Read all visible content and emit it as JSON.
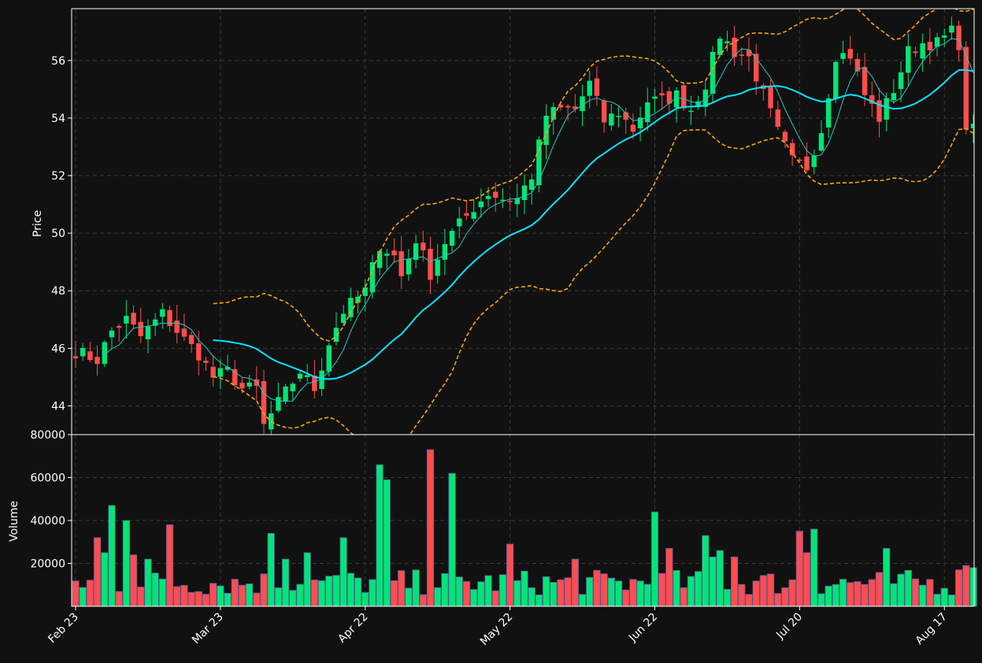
{
  "chart_data": {
    "type": "candlestick",
    "panels": [
      {
        "name": "price",
        "ylabel": "Price",
        "ylim": [
          43.0,
          57.8
        ],
        "yticks": [
          44,
          46,
          48,
          50,
          52,
          54,
          56
        ],
        "grid": true
      },
      {
        "name": "volume",
        "ylabel": "Volume",
        "ylim": [
          0,
          80000
        ],
        "yticks": [
          20000,
          40000,
          60000,
          80000
        ],
        "grid": true
      }
    ],
    "x_tick_labels": [
      {
        "label": "Feb 23",
        "index": 0
      },
      {
        "label": "Mar 23",
        "index": 20
      },
      {
        "label": "Apr 22",
        "index": 40
      },
      {
        "label": "May 22",
        "index": 60
      },
      {
        "label": "Jun 22",
        "index": 80
      },
      {
        "label": "Jul 20",
        "index": 100
      },
      {
        "label": "Aug 17",
        "index": 120
      }
    ],
    "n_bars": 125,
    "close_anchors": [
      [
        0,
        45.9
      ],
      [
        3,
        45.6
      ],
      [
        5,
        46.6
      ],
      [
        7,
        47.0
      ],
      [
        9,
        46.4
      ],
      [
        12,
        47.2
      ],
      [
        15,
        46.3
      ],
      [
        17,
        45.8
      ],
      [
        19,
        45.0
      ],
      [
        21,
        45.2
      ],
      [
        23,
        44.6
      ],
      [
        25,
        44.6
      ],
      [
        26,
        43.3
      ],
      [
        28,
        44.1
      ],
      [
        31,
        45.2
      ],
      [
        33,
        44.6
      ],
      [
        35,
        46.2
      ],
      [
        37,
        47.3
      ],
      [
        40,
        48.0
      ],
      [
        42,
        49.6
      ],
      [
        44,
        49.2
      ],
      [
        45,
        48.5
      ],
      [
        47,
        49.8
      ],
      [
        49,
        48.6
      ],
      [
        51,
        49.7
      ],
      [
        53,
        50.3
      ],
      [
        55,
        50.9
      ],
      [
        57,
        51.4
      ],
      [
        59,
        51.2
      ],
      [
        61,
        51.2
      ],
      [
        63,
        52.0
      ],
      [
        65,
        54.1
      ],
      [
        67,
        54.3
      ],
      [
        69,
        54.3
      ],
      [
        71,
        55.2
      ],
      [
        73,
        53.9
      ],
      [
        75,
        54.2
      ],
      [
        77,
        53.6
      ],
      [
        79,
        54.6
      ],
      [
        81,
        54.6
      ],
      [
        83,
        54.8
      ],
      [
        85,
        54.3
      ],
      [
        87,
        55.2
      ],
      [
        89,
        56.9
      ],
      [
        91,
        56.3
      ],
      [
        93,
        56.1
      ],
      [
        95,
        54.8
      ],
      [
        97,
        53.5
      ],
      [
        99,
        52.5
      ],
      [
        101,
        52.3
      ],
      [
        103,
        53.6
      ],
      [
        105,
        56.2
      ],
      [
        107,
        56.2
      ],
      [
        109,
        54.8
      ],
      [
        111,
        54.0
      ],
      [
        113,
        55.0
      ],
      [
        115,
        56.3
      ],
      [
        117,
        56.6
      ],
      [
        119,
        56.6
      ],
      [
        121,
        57.0
      ],
      [
        122,
        56.6
      ],
      [
        123,
        53.4
      ],
      [
        124,
        53.8
      ]
    ],
    "volume_spikes": [
      [
        3,
        32000
      ],
      [
        4,
        25000
      ],
      [
        5,
        47000
      ],
      [
        7,
        40000
      ],
      [
        8,
        24000
      ],
      [
        10,
        22000
      ],
      [
        13,
        38000
      ],
      [
        27,
        34000
      ],
      [
        29,
        22000
      ],
      [
        32,
        25000
      ],
      [
        37,
        32000
      ],
      [
        42,
        66000
      ],
      [
        43,
        59000
      ],
      [
        49,
        73000
      ],
      [
        52,
        62000
      ],
      [
        60,
        29000
      ],
      [
        69,
        22000
      ],
      [
        80,
        44000
      ],
      [
        82,
        27000
      ],
      [
        87,
        33000
      ],
      [
        88,
        23000
      ],
      [
        89,
        26000
      ],
      [
        91,
        23000
      ],
      [
        100,
        35000
      ],
      [
        102,
        36000
      ],
      [
        101,
        25000
      ],
      [
        112,
        27000
      ],
      [
        124,
        18000
      ],
      [
        123,
        19000
      ],
      [
        122,
        17000
      ]
    ],
    "series": [
      {
        "name": "MA fast",
        "window": 5,
        "color": "#26c6c6",
        "style": "thin"
      },
      {
        "name": "MA slow",
        "window": 20,
        "color": "#00e5ff",
        "style": "medium"
      },
      {
        "name": "Bollinger upper",
        "window": 20,
        "color": "#ffa500",
        "style": "dashed"
      },
      {
        "name": "Bollinger lower",
        "window": 20,
        "color": "#ffa500",
        "style": "dashed"
      }
    ],
    "colors": {
      "background": "#111111",
      "up": "#00e676",
      "down": "#ff4d4d",
      "volume_edge": "#5a5aa0",
      "grid": "#3a3a3a",
      "frame": "#ffffff"
    }
  }
}
